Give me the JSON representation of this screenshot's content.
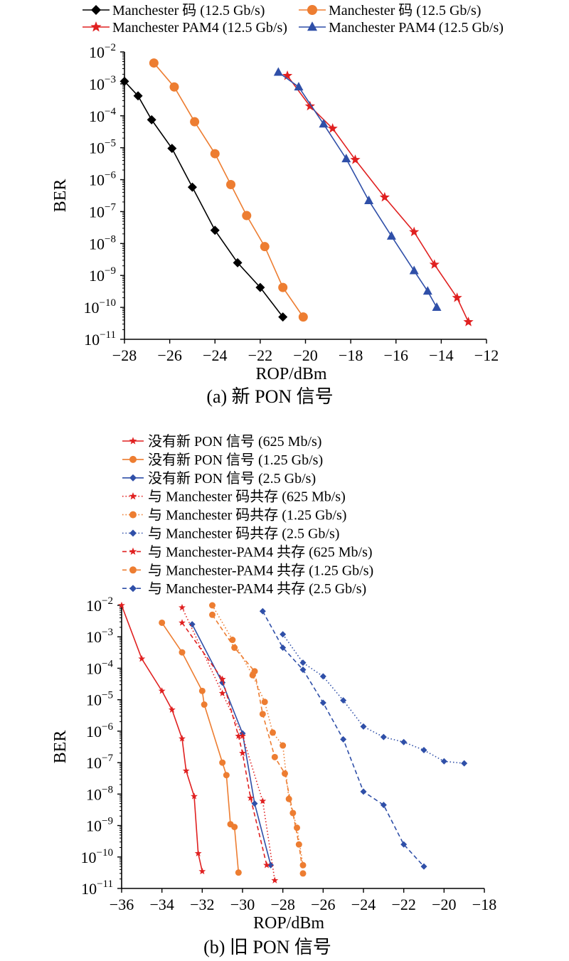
{
  "chart_data": [
    {
      "type": "line",
      "caption": "(a) 新 PON 信号",
      "xlabel": "ROP/dBm",
      "ylabel": "BER",
      "xlim": [
        -28,
        -12
      ],
      "ylim": [
        1e-11,
        0.01
      ],
      "yscale": "log",
      "xticks": [
        -28,
        -26,
        -24,
        -22,
        -20,
        -18,
        -16,
        -14,
        -12
      ],
      "yticks": [
        -11,
        -10,
        -9,
        -8,
        -7,
        -6,
        -5,
        -4,
        -3,
        -2
      ],
      "legend_position": "top",
      "series": [
        {
          "name": "Manchester 码 (12.5 Gb/s)",
          "color": "#000000",
          "marker": "diamond",
          "dash": "solid",
          "x": [
            -28,
            -27.4,
            -26.8,
            -25.9,
            -25,
            -24,
            -23,
            -22,
            -21
          ],
          "y": [
            0.0012,
            0.00042,
            7.5e-05,
            9.5e-06,
            5.8e-07,
            2.6e-08,
            2.5e-09,
            4.2e-10,
            5e-11
          ]
        },
        {
          "name": "Manchester 码 (12.5 Gb/s)",
          "color": "#ed7d31",
          "marker": "circle",
          "dash": "solid",
          "x": [
            -26.7,
            -25.8,
            -24.9,
            -24,
            -23.3,
            -22.6,
            -21.8,
            -21,
            -20.1
          ],
          "y": [
            0.0045,
            0.0008,
            6.5e-05,
            6.5e-06,
            7e-07,
            7.5e-08,
            8e-09,
            4.2e-10,
            5e-11
          ]
        },
        {
          "name": "Manchester PAM4 (12.5 Gb/s)",
          "color": "#e02020",
          "marker": "star",
          "dash": "solid",
          "x": [
            -20.8,
            -19.8,
            -18.8,
            -17.8,
            -16.5,
            -15.2,
            -14.3,
            -13.3,
            -12.8
          ],
          "y": [
            0.0018,
            0.0002,
            4e-05,
            4.2e-06,
            2.8e-07,
            2.3e-08,
            2.2e-09,
            2e-10,
            3.5e-11
          ]
        },
        {
          "name": "Manchester PAM4 (12.5 Gb/s)",
          "color": "#2f4fa8",
          "marker": "triangle",
          "dash": "solid",
          "x": [
            -21.2,
            -20.3,
            -19.2,
            -18.2,
            -17.2,
            -16.2,
            -15.2,
            -14.6,
            -14.2
          ],
          "y": [
            0.0023,
            0.0008,
            5.5e-05,
            4.5e-06,
            2.2e-07,
            1.7e-08,
            1.4e-09,
            3.2e-10,
            1e-10
          ]
        }
      ]
    },
    {
      "type": "line",
      "caption": "(b) 旧 PON 信号",
      "xlabel": "ROP/dBm",
      "ylabel": "BER",
      "xlim": [
        -36,
        -18
      ],
      "ylim": [
        1e-11,
        0.01
      ],
      "yscale": "log",
      "xticks": [
        -36,
        -34,
        -32,
        -30,
        -28,
        -26,
        -24,
        -22,
        -20,
        -18
      ],
      "yticks": [
        -11,
        -10,
        -9,
        -8,
        -7,
        -6,
        -5,
        -4,
        -3,
        -2
      ],
      "legend_position": "top",
      "series": [
        {
          "name": "没有新 PON 信号 (625 Mb/s)",
          "color": "#e02020",
          "marker": "star",
          "dash": "solid",
          "x": [
            -36,
            -35,
            -34,
            -33.5,
            -33,
            -32.8,
            -32.4,
            -32.2,
            -32
          ],
          "y": [
            0.01,
            0.0002,
            1.9e-05,
            4.8e-06,
            5.8e-07,
            5.5e-08,
            8.5e-09,
            1.3e-10,
            3.5e-11
          ]
        },
        {
          "name": "没有新 PON 信号 (1.25 Gb/s)",
          "color": "#ed7d31",
          "marker": "circle",
          "dash": "solid",
          "x": [
            -34,
            -33,
            -32,
            -31.9,
            -31,
            -30.8,
            -30.6,
            -30.4,
            -30.2
          ],
          "y": [
            0.0028,
            0.00032,
            1.9e-05,
            7e-06,
            1e-07,
            4e-08,
            1.1e-09,
            9e-10,
            3.2e-11
          ]
        },
        {
          "name": "没有新 PON 信号 (2.5 Gb/s)",
          "color": "#2f4fa8",
          "marker": "diamond",
          "dash": "solid",
          "x": [
            -32.5,
            -31,
            -30,
            -29.4,
            -28.6
          ],
          "y": [
            0.0025,
            3.5e-05,
            8.5e-07,
            5e-09,
            5.5e-11
          ]
        },
        {
          "name": "与 Manchester 码共存 (625 Mb/s)",
          "color": "#e02020",
          "marker": "star",
          "dash": "dotted",
          "x": [
            -33,
            -31,
            -30,
            -29,
            -28.4
          ],
          "y": [
            0.0085,
            1.6e-05,
            7e-07,
            6e-09,
            1.8e-11
          ]
        },
        {
          "name": "与 Manchester 码共存 (1.25 Gb/s)",
          "color": "#ed7d31",
          "marker": "circle",
          "dash": "dotted",
          "x": [
            -31.5,
            -30.5,
            -29.5,
            -28.9,
            -28.5,
            -28,
            -27.7,
            -27.3,
            -27
          ],
          "y": [
            0.01,
            0.0008,
            6e-05,
            8.5e-06,
            9e-07,
            3.5e-07,
            7e-09,
            8.5e-10,
            5.5e-11
          ]
        },
        {
          "name": "与 Manchester 码共存 (2.5 Gb/s)",
          "color": "#2f4fa8",
          "marker": "diamond",
          "dash": "dotted",
          "x": [
            -28,
            -27,
            -26,
            -25,
            -24,
            -23,
            -22,
            -21,
            -20,
            -19
          ],
          "y": [
            0.0012,
            0.00015,
            5.5e-05,
            9.5e-06,
            1.4e-06,
            6.5e-07,
            4.5e-07,
            2.5e-07,
            1.1e-07,
            9.5e-08
          ]
        },
        {
          "name": "与 Manchester-PAM4 共存 (625 Mb/s)",
          "color": "#e02020",
          "marker": "star",
          "dash": "dashed",
          "x": [
            -33,
            -31,
            -30.2,
            -30,
            -29.6,
            -28.8
          ],
          "y": [
            0.0028,
            4.5e-05,
            7e-07,
            2e-07,
            7.5e-09,
            5.5e-11
          ]
        },
        {
          "name": "与 Manchester-PAM4 共存 (1.25 Gb/s)",
          "color": "#ed7d31",
          "marker": "circle",
          "dash": "dashed",
          "x": [
            -31.5,
            -30.4,
            -29.4,
            -29,
            -28.4,
            -27.9,
            -27.5,
            -27.2,
            -27
          ],
          "y": [
            0.005,
            0.00045,
            8e-05,
            3.5e-06,
            1.5e-07,
            4.5e-08,
            2.5e-09,
            2.5e-10,
            3e-11
          ]
        },
        {
          "name": "与 Manchester-PAM4 共存 (2.5 Gb/s)",
          "color": "#2f4fa8",
          "marker": "diamond",
          "dash": "dashed",
          "x": [
            -29,
            -28,
            -27,
            -26,
            -25,
            -24,
            -23,
            -22,
            -21
          ],
          "y": [
            0.0065,
            0.00045,
            9e-05,
            8e-06,
            5.5e-07,
            1.2e-08,
            4.5e-09,
            2.5e-10,
            5e-11
          ]
        }
      ]
    }
  ]
}
